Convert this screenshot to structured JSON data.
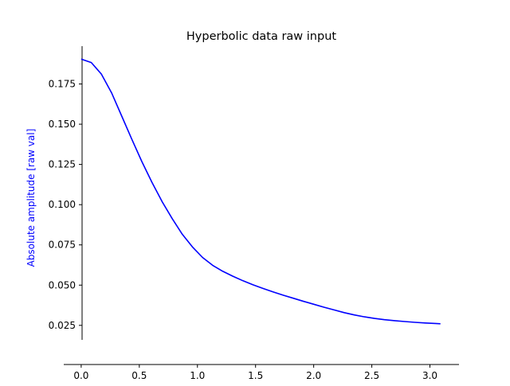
{
  "chart_data": {
    "type": "line",
    "title": "Hyperbolic data raw input",
    "xlabel": "",
    "ylabel": "Absolute amplitude [raw val]",
    "xlim": [
      -0.15,
      3.25
    ],
    "ylim": [
      0.016,
      0.1985
    ],
    "x_ticks": [
      "0.0",
      "0.5",
      "1.0",
      "1.5",
      "2.0",
      "2.5",
      "3.0"
    ],
    "y_ticks": [
      "0.025",
      "0.050",
      "0.075",
      "0.100",
      "0.125",
      "0.150",
      "0.175"
    ],
    "grid": false,
    "legend": "none",
    "colors": {
      "line": "#0000ff",
      "ylabel": "#0000ff",
      "axis": "#000000"
    },
    "series": [
      {
        "x": [
          0.0,
          0.087,
          0.174,
          0.261,
          0.348,
          0.435,
          0.522,
          0.609,
          0.696,
          0.783,
          0.87,
          0.957,
          1.044,
          1.131,
          1.218,
          1.305,
          1.392,
          1.479,
          1.566,
          1.653,
          1.74,
          1.827,
          1.914,
          2.001,
          2.088,
          2.175,
          2.262,
          2.349,
          2.436,
          2.523,
          2.61,
          2.697,
          2.784,
          2.871,
          2.958,
          3.045,
          3.09
        ],
        "y": [
          0.1905,
          0.1883,
          0.1811,
          0.1695,
          0.1552,
          0.1408,
          0.1268,
          0.1139,
          0.1019,
          0.0913,
          0.0816,
          0.0737,
          0.0672,
          0.0623,
          0.0586,
          0.0555,
          0.0527,
          0.0502,
          0.0479,
          0.0457,
          0.0437,
          0.0418,
          0.0399,
          0.0381,
          0.0363,
          0.0346,
          0.0329,
          0.0315,
          0.0303,
          0.0293,
          0.0285,
          0.0279,
          0.0274,
          0.0269,
          0.0265,
          0.0262,
          0.026
        ]
      }
    ]
  }
}
